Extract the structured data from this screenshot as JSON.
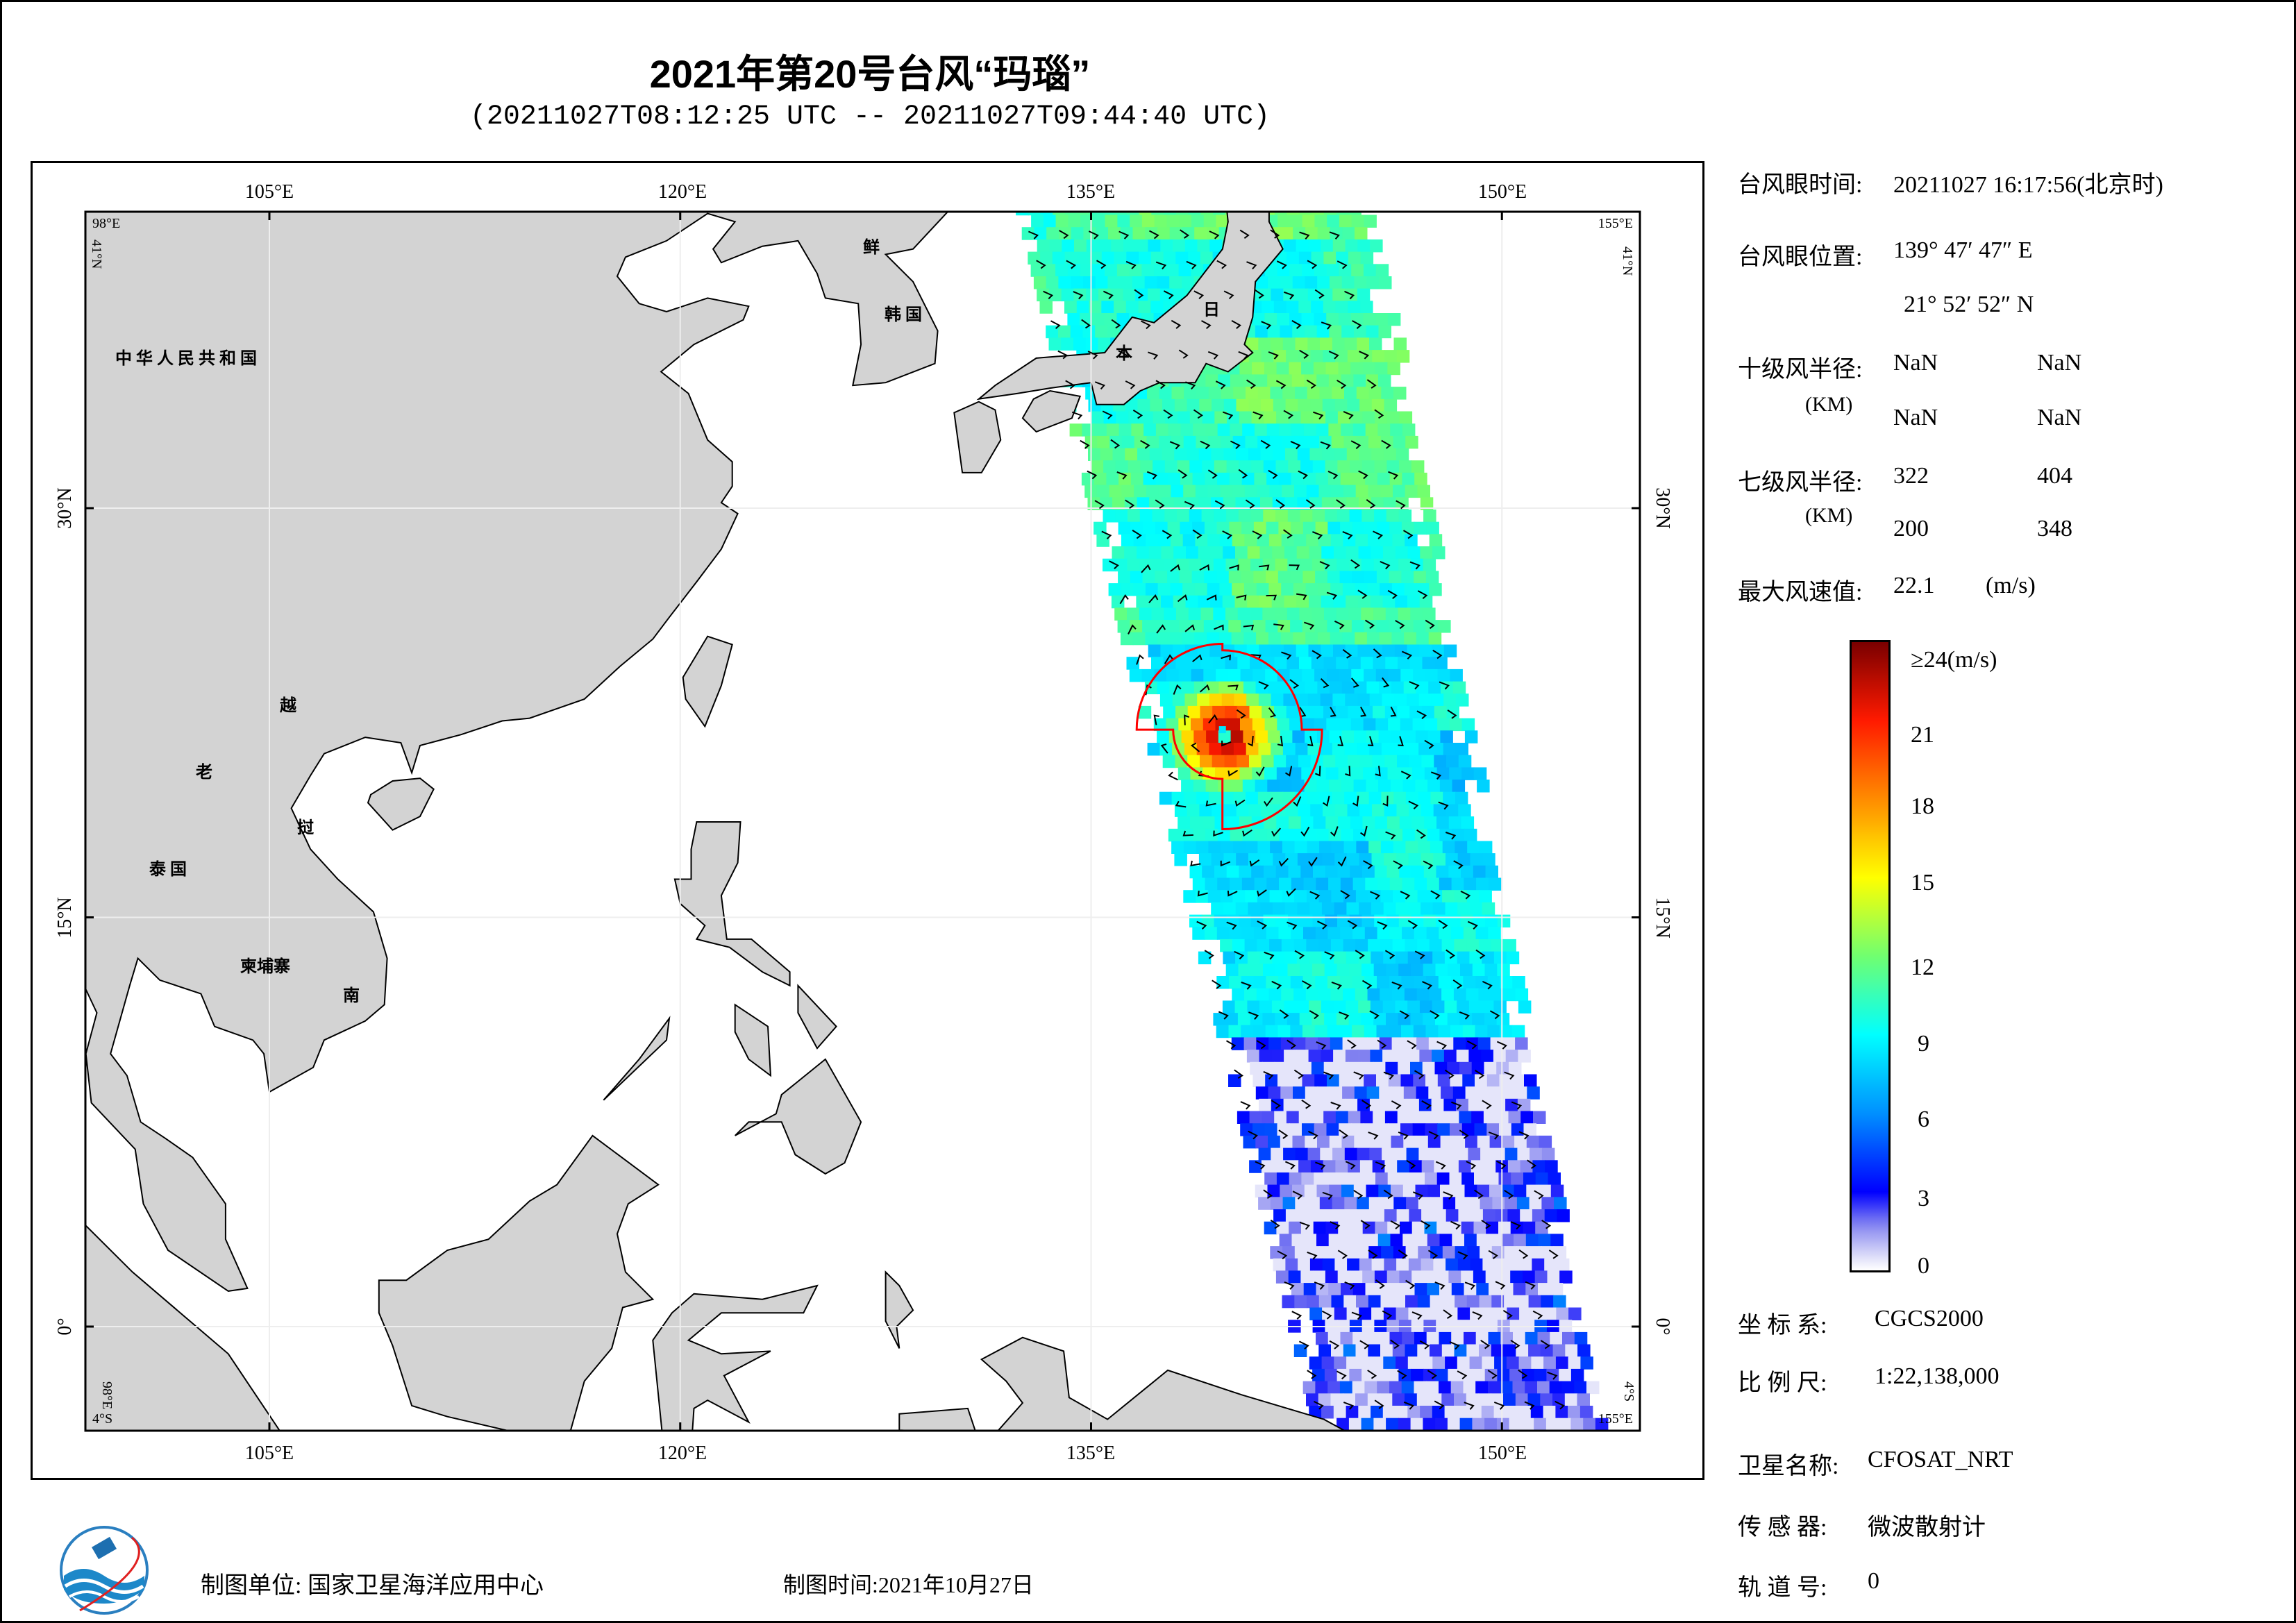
{
  "header": {
    "title": "2021年第20号台风“玛瑙”",
    "subtitle": "(20211027T08:12:25 UTC -- 20211027T09:44:40 UTC)"
  },
  "map": {
    "lon_range": [
      98,
      155
    ],
    "lat_range": [
      -4,
      41
    ],
    "top_lon_ticks": [
      "105°E",
      "120°E",
      "135°E",
      "150°E"
    ],
    "bottom_lon_ticks": [
      "105°E",
      "120°E",
      "135°E",
      "150°E"
    ],
    "lat_ticks": [
      "30°N",
      "15°N",
      "0°"
    ],
    "corners": {
      "top_left_lon": "98°E",
      "top_left_lat": "41°N",
      "top_right_lon": "155°E",
      "top_right_lat": "41°N",
      "bottom_left_lon": "98°E",
      "bottom_left_lat": "4°S",
      "bottom_right_lon": "155°E",
      "bottom_right_lat": "4°S"
    },
    "countries": {
      "china": "中 华 人 民 共 和 国",
      "dprk": "鲜",
      "rok": "韩 国",
      "japan_1": "日",
      "japan_2": "本",
      "laos_1": "老",
      "laos_2": "挝",
      "vietnam_1": "越",
      "vietnam_2": "南",
      "thailand": "泰 国",
      "cambodia": "柬埔寨"
    },
    "typhoon_center": {
      "lon": 139.796,
      "lat": 21.881
    },
    "land_color": "#d3d3d3",
    "radius_color": "#ff0000"
  },
  "info": {
    "eye_time_label": "台风眼时间:",
    "eye_time_value": "20211027 16:17:56(北京时)",
    "eye_pos_label": "台风眼位置:",
    "eye_lon": "139° 47′ 47″ E",
    "eye_lat": "21° 52′ 52″ N",
    "r10_label": "十级风半径:",
    "r10_unit": "(KM)",
    "r10_values": [
      "NaN",
      "NaN",
      "NaN",
      "NaN"
    ],
    "r7_label": "七级风半径:",
    "r7_unit": "(KM)",
    "r7_values": [
      "322",
      "404",
      "200",
      "348"
    ],
    "max_wind_label": "最大风速值:",
    "max_wind_value": "22.1",
    "max_wind_unit": "(m/s)",
    "crs_label": "坐 标 系:",
    "crs_value": "CGCS2000",
    "scale_label": "比 例 尺:",
    "scale_value": "1:22,138,000",
    "satellite_label": "卫星名称:",
    "satellite_value": "CFOSAT_NRT",
    "sensor_label": "传 感 器:",
    "sensor_value": "微波散射计",
    "orbit_label": "轨 道 号:",
    "orbit_value": "0"
  },
  "colorbar": {
    "ticks": [
      "≥24(m/s)",
      "21",
      "18",
      "15",
      "12",
      "9",
      "6",
      "3",
      "0"
    ],
    "range": [
      0,
      24
    ],
    "stops": [
      {
        "v": 0,
        "c": "#ffffff"
      },
      {
        "v": 0.6,
        "c": "#d8d8f8"
      },
      {
        "v": 1.8,
        "c": "#8080f0"
      },
      {
        "v": 3,
        "c": "#0000ff"
      },
      {
        "v": 6,
        "c": "#0090ff"
      },
      {
        "v": 9,
        "c": "#00ffff"
      },
      {
        "v": 12,
        "c": "#70ff70"
      },
      {
        "v": 15,
        "c": "#ffff00"
      },
      {
        "v": 18,
        "c": "#ff8c00"
      },
      {
        "v": 21,
        "c": "#ff1a00"
      },
      {
        "v": 24,
        "c": "#7a0000"
      }
    ]
  },
  "footer": {
    "producer": "制图单位: 国家卫星海洋应用中心",
    "date": "制图时间:2021年10月27日"
  }
}
